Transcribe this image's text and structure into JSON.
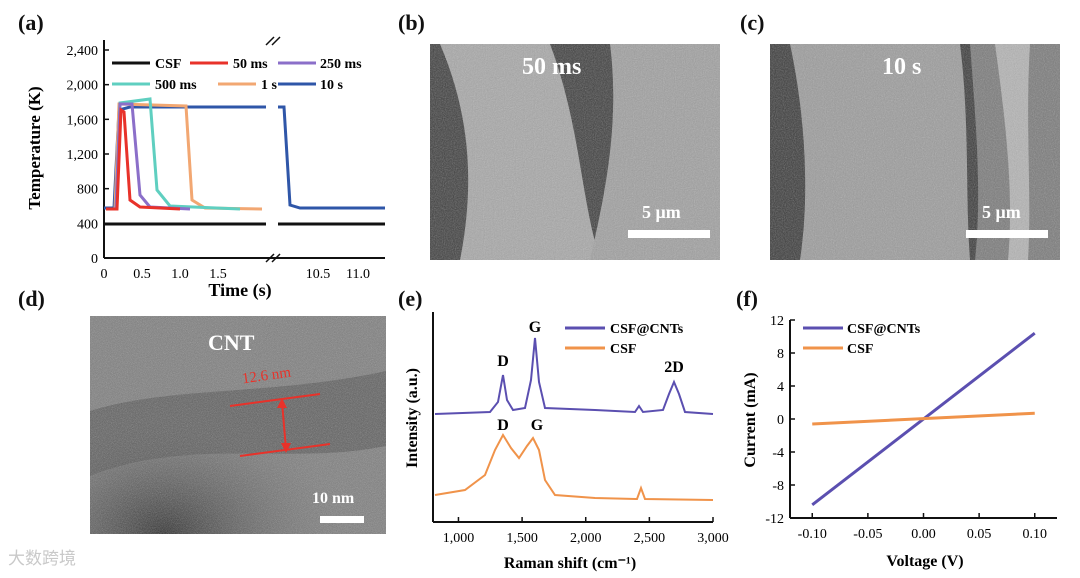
{
  "panels": {
    "a": {
      "label": "(a)",
      "ylabel": "Temperature (K)",
      "xlabel": "Time (s)",
      "legend": [
        "CSF",
        "50 ms",
        "250 ms",
        "500 ms",
        "1 s",
        "10 s"
      ]
    },
    "b": {
      "label": "(b)",
      "caption": "50 ms",
      "scale": "5 μm"
    },
    "c": {
      "label": "(c)",
      "caption": "10 s",
      "scale": "5 μm"
    },
    "d": {
      "label": "(d)",
      "caption": "CNT",
      "measure": "12.6 nm",
      "scale": "10 nm"
    },
    "e": {
      "label": "(e)",
      "ylabel": "Intensity (a.u.)",
      "xlabel": "Raman shift (cm⁻¹)",
      "legend": [
        "CSF@CNTs",
        "CSF"
      ],
      "peaks_top": [
        "D",
        "G",
        "2D"
      ],
      "peaks_bottom": [
        "D",
        "G"
      ]
    },
    "f": {
      "label": "(f)",
      "ylabel": "Current (mA)",
      "xlabel": "Voltage (V)",
      "legend": [
        "CSF@CNTs",
        "CSF"
      ]
    }
  },
  "colors": {
    "CSF": "#111111",
    "50ms": "#e8322a",
    "250ms": "#8b6fc9",
    "500ms": "#5fcfc0",
    "1s": "#f2a772",
    "10s": "#2f56a8",
    "cnt": "#5b4fb0",
    "csf_orange": "#f0934a"
  },
  "chart_data": [
    {
      "type": "line",
      "title": "",
      "xlabel": "Time (s)",
      "ylabel": "Temperature (K)",
      "ylim": [
        0,
        2400
      ],
      "yticks": [
        "0",
        "400",
        "800",
        "1,200",
        "1,600",
        "2,000",
        "2,400"
      ],
      "xticks_left": [
        "0",
        "0.5",
        "1.0",
        "1.5"
      ],
      "xticks_right": [
        "10.5",
        "11.0"
      ],
      "series": [
        {
          "name": "CSF",
          "peak": 300
        },
        {
          "name": "50 ms",
          "peak": 1680
        },
        {
          "name": "250 ms",
          "peak": 1720
        },
        {
          "name": "500 ms",
          "peak": 1780
        },
        {
          "name": "1 s",
          "peak": 1720
        },
        {
          "name": "10 s",
          "peak": 1700
        }
      ]
    },
    {
      "type": "line",
      "title": "",
      "xlabel": "Raman shift (cm⁻¹)",
      "ylabel": "Intensity (a.u.)",
      "xlim": [
        800,
        3000
      ],
      "xticks": [
        "1,000",
        "1,500",
        "2,000",
        "2,500",
        "3,000"
      ],
      "series": [
        {
          "name": "CSF@CNTs",
          "peaks_cm": [
            1350,
            1580,
            2690
          ]
        },
        {
          "name": "CSF",
          "peaks_cm": [
            1340,
            1590
          ]
        }
      ]
    },
    {
      "type": "line",
      "title": "",
      "xlabel": "Voltage (V)",
      "ylabel": "Current (mA)",
      "xlim": [
        -0.12,
        0.12
      ],
      "ylim": [
        -12,
        12
      ],
      "xticks": [
        "-0.10",
        "-0.05",
        "0.00",
        "0.05",
        "0.10"
      ],
      "yticks": [
        "-12",
        "-8",
        "-4",
        "0",
        "4",
        "8",
        "12"
      ],
      "series": [
        {
          "name": "CSF@CNTs",
          "x": [
            -0.1,
            0.1
          ],
          "y": [
            -10.4,
            10.4
          ]
        },
        {
          "name": "CSF",
          "x": [
            -0.1,
            0.1
          ],
          "y": [
            -0.6,
            0.7
          ]
        }
      ]
    }
  ],
  "watermark": "大数跨境"
}
